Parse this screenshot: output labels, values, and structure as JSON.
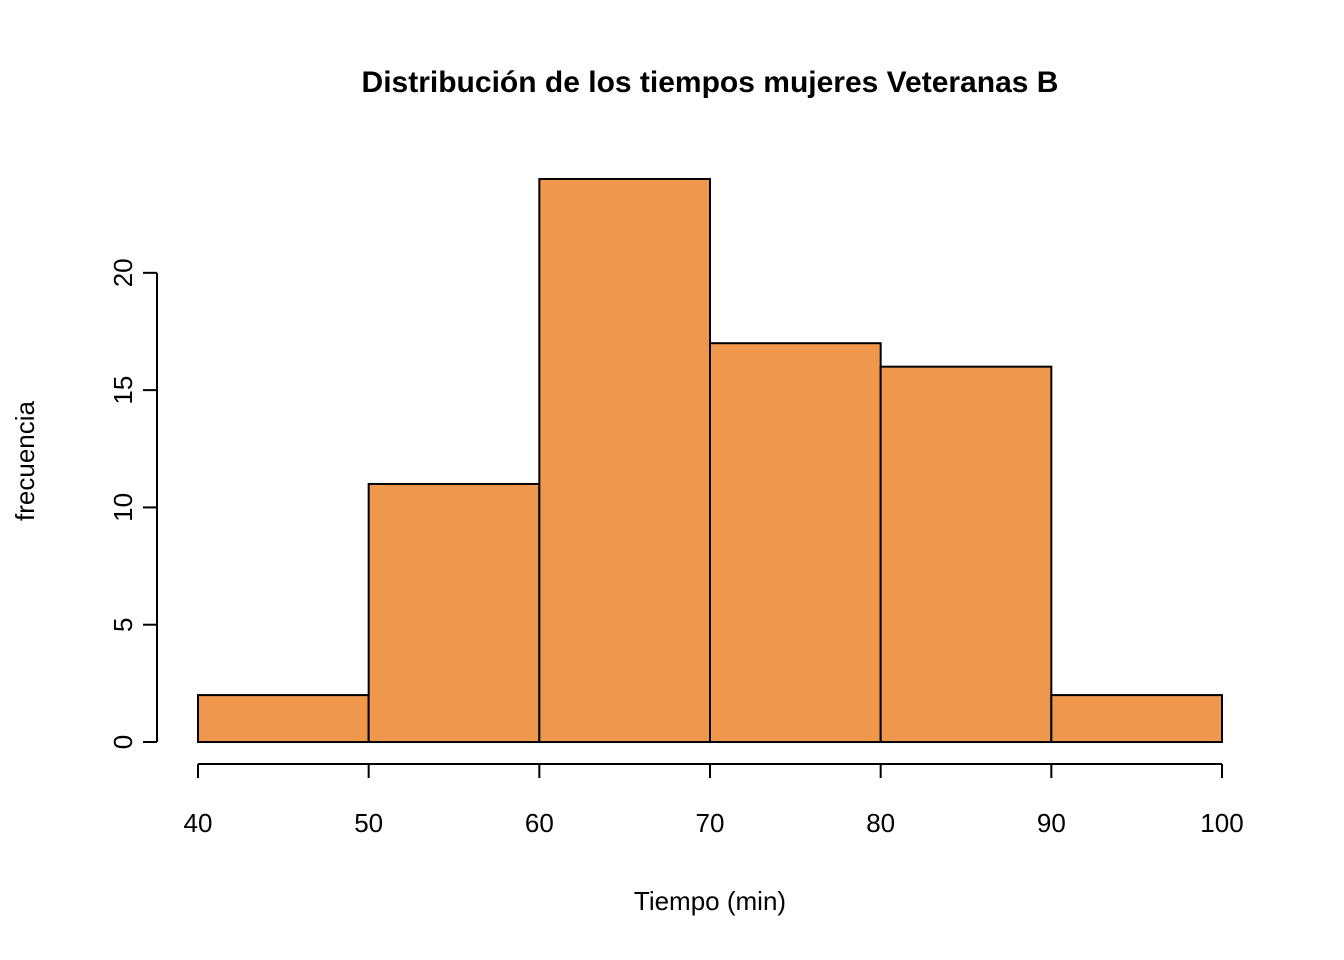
{
  "chart_data": {
    "type": "bar",
    "title": "Distribución de los tiempos mujeres Veteranas B",
    "xlabel": "Tiempo (min)",
    "ylabel": "frecuencia",
    "bin_edges": [
      40,
      50,
      60,
      70,
      80,
      90,
      100
    ],
    "values": [
      2,
      11,
      24,
      17,
      16,
      2
    ],
    "xlim": [
      40,
      100
    ],
    "ylim": [
      0,
      24
    ],
    "x_ticks": [
      40,
      50,
      60,
      70,
      80,
      90,
      100
    ],
    "y_ticks": [
      0,
      5,
      10,
      15,
      20
    ],
    "bar_color": "#EE974D",
    "grid": false,
    "legend": "none"
  }
}
